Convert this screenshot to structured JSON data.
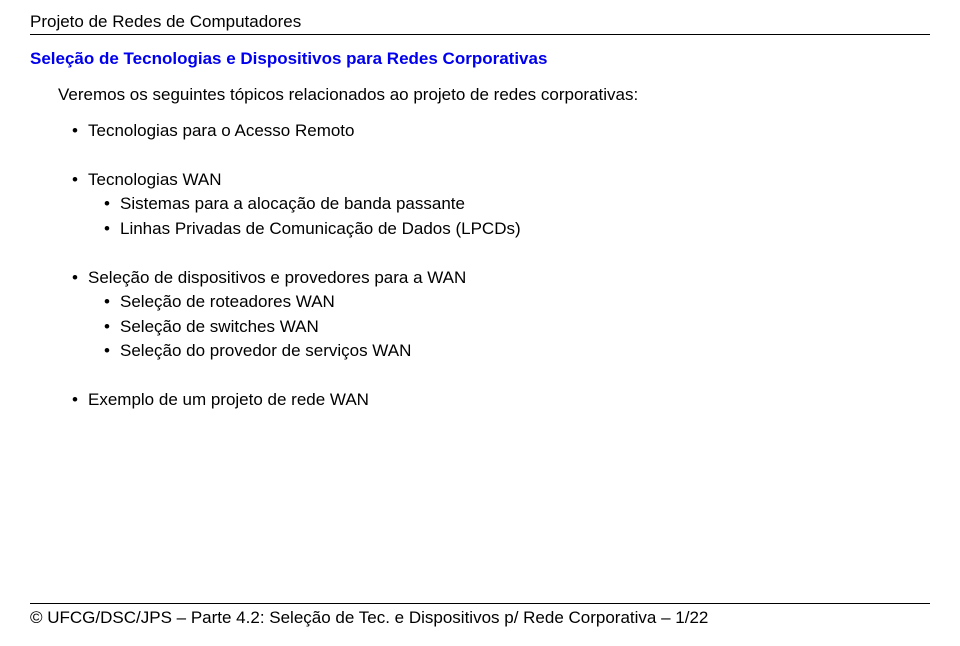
{
  "colors": {
    "text": "#000000",
    "link": "#0000EE",
    "background": "#ffffff",
    "rule": "#000000"
  },
  "typography": {
    "family": "Verdana, Geneva, sans-serif",
    "body_size_pt": 13,
    "title_weight": "bold"
  },
  "header": {
    "title": "Projeto de Redes de Computadores"
  },
  "section": {
    "title": "Seleção de Tecnologias e Dispositivos para Redes Corporativas"
  },
  "intro": "Veremos os seguintes tópicos relacionados ao projeto de redes corporativas:",
  "bullets": {
    "b1": "Tecnologias para o Acesso Remoto",
    "b2": "Tecnologias WAN",
    "b2_1": "Sistemas para a alocação de banda passante",
    "b2_2": "Linhas Privadas de Comunicação de Dados (LPCDs)",
    "b3": "Seleção de dispositivos e provedores para a WAN",
    "b3_1": "Seleção de roteadores WAN",
    "b3_2": "Seleção de switches WAN",
    "b3_3": "Seleção do provedor de serviços WAN",
    "b4": "Exemplo de um projeto de rede WAN"
  },
  "footer": {
    "text": "© UFCG/DSC/JPS – Parte 4.2: Seleção de Tec. e Dispositivos p/ Rede Corporativa – 1/22"
  }
}
